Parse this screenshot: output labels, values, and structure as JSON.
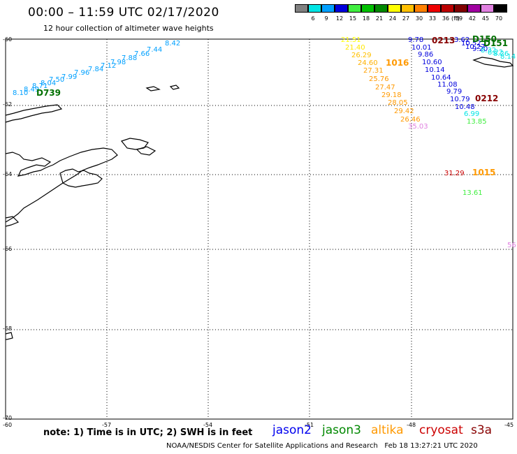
{
  "header": {
    "title": "00:00 – 11:59 UTC 02/17/2020",
    "subtitle": "12 hour collection of altimeter wave heights"
  },
  "legend": {
    "unit": "(ft)",
    "swatches": [
      {
        "label": "3",
        "color": "#808080"
      },
      {
        "label": "6",
        "color": "#00e5e5"
      },
      {
        "label": "9",
        "color": "#00a0ff"
      },
      {
        "label": "12",
        "color": "#0000dd"
      },
      {
        "label": "15",
        "color": "#40ee40"
      },
      {
        "label": "18",
        "color": "#00c000"
      },
      {
        "label": "21",
        "color": "#008800"
      },
      {
        "label": "24",
        "color": "#ffff00"
      },
      {
        "label": "27",
        "color": "#ffc000"
      },
      {
        "label": "30",
        "color": "#ff8000"
      },
      {
        "label": "33",
        "color": "#ee0000"
      },
      {
        "label": "36",
        "color": "#bb0000"
      },
      {
        "label": "39",
        "color": "#800000"
      },
      {
        "label": "42",
        "color": "#a000a0"
      },
      {
        "label": "45",
        "color": "#e080e0"
      },
      {
        "label": "70",
        "color": "#000000"
      }
    ]
  },
  "axes": {
    "lat_labels": [
      "-60",
      "-62",
      "-64",
      "-66",
      "-68",
      "-70"
    ],
    "lon_labels": [
      "-60",
      "-57",
      "-54",
      "-51",
      "-48",
      "-45"
    ]
  },
  "tracks": [
    {
      "label": "D739",
      "color": "#007000",
      "values": [
        "8.10",
        "8.49",
        "8.71",
        "8.04",
        "7.50",
        "7.99",
        "7.96",
        "7.84",
        "7.12",
        "7.98",
        "7.88",
        "7.66",
        "7.44",
        "8.42"
      ]
    },
    {
      "label": "1016",
      "color": "#ff9900",
      "values": [
        "21.51",
        "21.40",
        "26.29",
        "24.60",
        "27.31",
        "25.76",
        "27.47",
        "29.18",
        "28.05",
        "29.42",
        "26.46",
        "35.03"
      ]
    },
    {
      "label": "0213",
      "color": "#880000",
      "values": [
        "9.78",
        "10.01",
        "9.86",
        "10.60",
        "10.14",
        "10.64",
        "11.08",
        "9.79",
        "10.79",
        "10.48",
        "6.99",
        "13.85"
      ]
    },
    {
      "label": "D150",
      "color": "#007000",
      "values": [
        "3.62",
        "10.52",
        "10.27",
        "9.20"
      ]
    },
    {
      "label": "D151",
      "color": "#007000",
      "values": [
        "8.32",
        "8.22",
        "8.26",
        "8.14"
      ]
    },
    {
      "label": "0212",
      "color": "#880000",
      "values": []
    },
    {
      "label": "1015",
      "color": "#ff9900",
      "values": [
        "31.29",
        "13.61"
      ]
    },
    {
      "label": "",
      "color": "#e080e0",
      "values": [
        "56"
      ]
    }
  ],
  "footer": {
    "note": "note: 1) Time is in UTC; 2) SWH is in feet",
    "satellites": [
      {
        "name": "jason2",
        "color": "#0000ee"
      },
      {
        "name": "jason3",
        "color": "#008800"
      },
      {
        "name": "altika",
        "color": "#ff9900"
      },
      {
        "name": "cryosat",
        "color": "#cc0000"
      },
      {
        "name": "s3a",
        "color": "#880000"
      }
    ],
    "credit": "NOAA/NESDIS Center for Satellite Applications and Research",
    "timestamp": "Feb 18 13:27:21 UTC 2020"
  }
}
